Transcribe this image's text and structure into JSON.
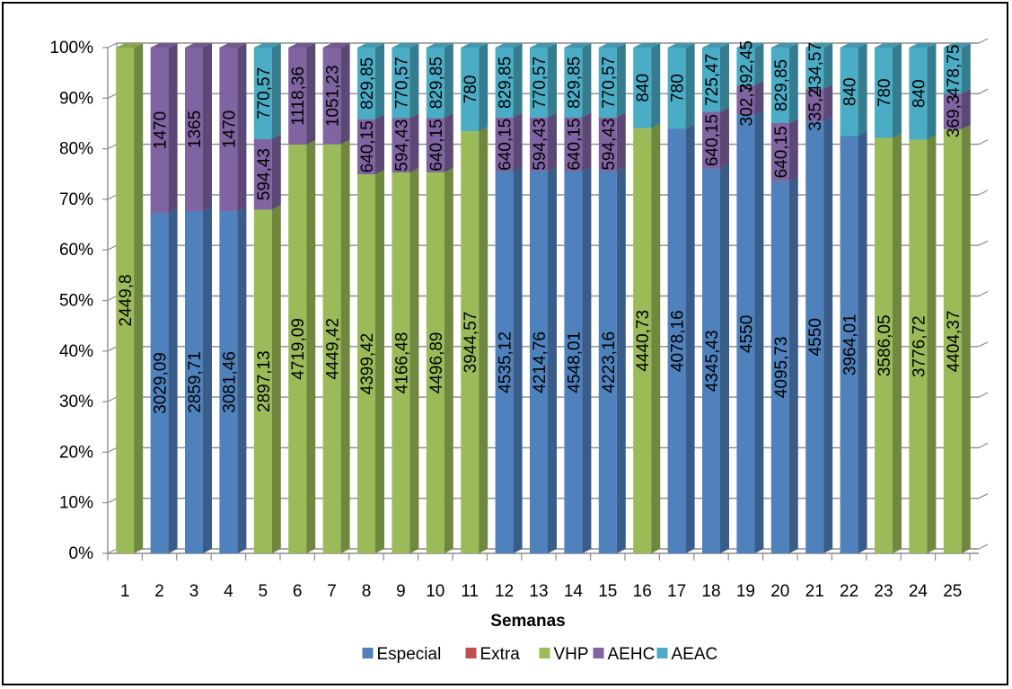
{
  "chart_data": {
    "type": "bar",
    "stacked": true,
    "percent": true,
    "title": "",
    "xlabel": "Semanas",
    "ylabel": "",
    "ylim": [
      0,
      100
    ],
    "yticks": [
      "0%",
      "10%",
      "20%",
      "30%",
      "40%",
      "50%",
      "60%",
      "70%",
      "80%",
      "90%",
      "100%"
    ],
    "grid": true,
    "legend_position": "bottom",
    "categories": [
      "1",
      "2",
      "3",
      "4",
      "5",
      "6",
      "7",
      "8",
      "9",
      "10",
      "11",
      "12",
      "13",
      "14",
      "15",
      "16",
      "17",
      "18",
      "19",
      "20",
      "21",
      "22",
      "23",
      "24",
      "25"
    ],
    "series": [
      {
        "name": "Especial",
        "color": "#4F81BD",
        "values": [
          null,
          3029.09,
          2859.71,
          3081.46,
          null,
          null,
          null,
          null,
          null,
          null,
          null,
          4535.12,
          4214.76,
          4548.01,
          4223.16,
          null,
          4078.16,
          4345.43,
          4550,
          4095.73,
          4550,
          3964.01,
          null,
          null,
          null
        ],
        "labels": [
          "",
          "3029,09",
          "2859,71",
          "3081,46",
          "",
          "",
          "",
          "",
          "",
          "",
          "",
          "4535,12",
          "4214,76",
          "4548,01",
          "4223,16",
          "",
          "4078,16",
          "4345,43",
          "4550",
          "4095,73",
          "4550",
          "3964,01",
          "",
          "",
          ""
        ]
      },
      {
        "name": "Extra",
        "color": "#C0504D",
        "values": [
          null,
          null,
          null,
          null,
          null,
          null,
          null,
          null,
          null,
          null,
          null,
          null,
          null,
          null,
          null,
          null,
          null,
          null,
          null,
          null,
          null,
          null,
          null,
          null,
          null
        ],
        "labels": [
          "",
          "",
          "",
          "",
          "",
          "",
          "",
          "",
          "",
          "",
          "",
          "",
          "",
          "",
          "",
          "",
          "",
          "",
          "",
          "",
          "",
          "",
          "",
          "",
          ""
        ]
      },
      {
        "name": "VHP",
        "color": "#9BBB59",
        "values": [
          2449.8,
          null,
          null,
          null,
          2897.13,
          4719.09,
          4449.42,
          4399.42,
          4166.48,
          4496.89,
          3944.57,
          null,
          null,
          null,
          null,
          4440.73,
          null,
          null,
          null,
          null,
          null,
          null,
          3586.05,
          3776.72,
          4404.37
        ],
        "labels": [
          "2449,8",
          "",
          "",
          "",
          "2897,13",
          "4719,09",
          "4449,42",
          "4399,42",
          "4166,48",
          "4496,89",
          "3944,57",
          "",
          "",
          "",
          "",
          "4440,73",
          "",
          "",
          "",
          "",
          "",
          "",
          "3586,05",
          "3776,72",
          "4404,37"
        ]
      },
      {
        "name": "AEHC",
        "color": "#8064A2",
        "values": [
          null,
          1470,
          1365,
          1470,
          594.43,
          1118.36,
          1051.23,
          640.15,
          594.43,
          640.15,
          null,
          640.15,
          594.43,
          640.15,
          594.43,
          null,
          null,
          640.15,
          302.74,
          640.15,
          335.23,
          null,
          null,
          null,
          369.31
        ],
        "labels": [
          "",
          "1470",
          "1365",
          "1470",
          "594,43",
          "1118,36",
          "1051,23",
          "640,15",
          "594,43",
          "640,15",
          "",
          "640,15",
          "594,43",
          "640,15",
          "594,43",
          "",
          "",
          "640,15",
          "302,74",
          "640,15",
          "335,23",
          "",
          "",
          "",
          "369,31"
        ]
      },
      {
        "name": "AEAC",
        "color": "#4BACC6",
        "values": [
          null,
          null,
          null,
          null,
          770.57,
          null,
          null,
          829.85,
          770.57,
          829.85,
          780,
          829.85,
          770.57,
          829.85,
          770.57,
          840,
          780,
          725.47,
          392.45,
          829.85,
          434.57,
          840,
          780,
          840,
          478.75
        ],
        "labels": [
          "",
          "",
          "",
          "",
          "770,57",
          "",
          "",
          "829,85",
          "770,57",
          "829,85",
          "780",
          "829,85",
          "770,57",
          "829,85",
          "770,57",
          "840",
          "780",
          "725,47",
          "392,45",
          "829,85",
          "434,57",
          "840",
          "780",
          "840",
          "478,75"
        ]
      }
    ]
  }
}
